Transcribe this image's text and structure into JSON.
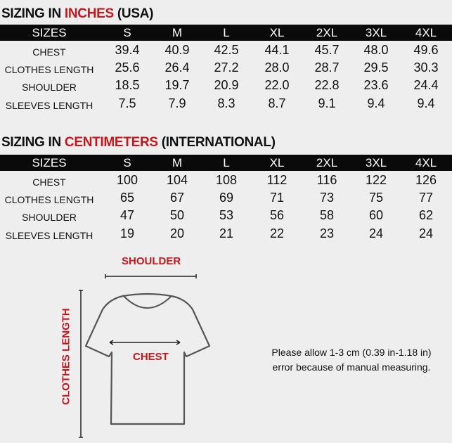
{
  "sizes_header": "SIZES",
  "sizes": [
    "S",
    "M",
    "L",
    "XL",
    "2XL",
    "3XL",
    "4XL"
  ],
  "inches": {
    "title_prefix": "SIZING IN ",
    "title_highlight": "INCHES",
    "title_suffix": " (USA)",
    "rows": [
      {
        "label": "CHEST",
        "values": [
          "39.4",
          "40.9",
          "42.5",
          "44.1",
          "45.7",
          "48.0",
          "49.6"
        ]
      },
      {
        "label": "CLOTHES LENGTH",
        "values": [
          "25.6",
          "26.4",
          "27.2",
          "28.0",
          "28.7",
          "29.5",
          "30.3"
        ]
      },
      {
        "label": "SHOULDER",
        "values": [
          "18.5",
          "19.7",
          "20.9",
          "22.0",
          "22.8",
          "23.6",
          "24.4"
        ]
      },
      {
        "label": "SLEEVES LENGTH",
        "values": [
          "7.5",
          "7.9",
          "8.3",
          "8.7",
          "9.1",
          "9.4",
          "9.4"
        ]
      }
    ]
  },
  "centimeters": {
    "title_prefix": "SIZING IN ",
    "title_highlight": "CENTIMETERS",
    "title_suffix": " (INTERNATIONAL)",
    "rows": [
      {
        "label": "CHEST",
        "values": [
          "100",
          "104",
          "108",
          "112",
          "116",
          "122",
          "126"
        ]
      },
      {
        "label": "CLOTHES LENGTH",
        "values": [
          "65",
          "67",
          "69",
          "71",
          "73",
          "75",
          "77"
        ]
      },
      {
        "label": "SHOULDER",
        "values": [
          "47",
          "50",
          "53",
          "56",
          "58",
          "60",
          "62"
        ]
      },
      {
        "label": "SLEEVES LENGTH",
        "values": [
          "19",
          "20",
          "21",
          "22",
          "23",
          "24",
          "24"
        ]
      }
    ]
  },
  "diagram": {
    "shoulder": "SHOULDER",
    "chest": "CHEST",
    "clothes_length": "CLOTHES LENGTH"
  },
  "note": {
    "line1": "Please allow 1-3 cm (0.39 in-1.18 in)",
    "line2": "error because of manual measuring."
  },
  "colors": {
    "accent": "#c8161d",
    "header_bg": "#0a0a0a",
    "background": "#eeeeee"
  }
}
